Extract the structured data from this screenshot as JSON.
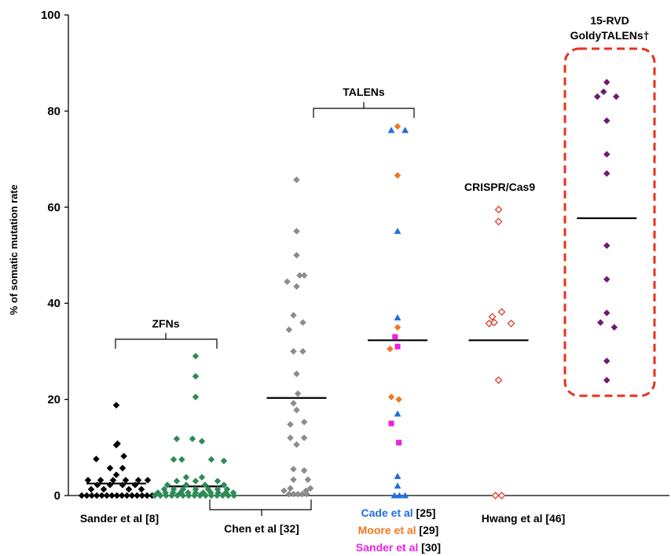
{
  "chart_data": {
    "type": "scatter",
    "ylabel": "% of somatic mutation rate",
    "ylim": [
      0,
      100
    ],
    "yticks": [
      0,
      20,
      40,
      60,
      80,
      100
    ],
    "grid": false,
    "colors": {
      "sander8": "#000000",
      "chen": "#2e8b57",
      "talen_gray": "#8c8c8c",
      "cade": "#1f6fe0",
      "moore": "#f07820",
      "sander30": "#f020e0",
      "hwang": "#e23a2a",
      "goldy": "#6e1b70",
      "highlight": "#e8321e"
    },
    "category_labels": {
      "sander8": "Sander et al [8]",
      "chen": "Chen et al [32]",
      "hwang": "Hwang et al [46]",
      "cade_name": "Cade et al",
      "cade_ref": " [25]",
      "moore_name": "Moore et al",
      "moore_ref": " [29]",
      "sander30_name": "Sander et al",
      "sander30_ref": " [30]"
    },
    "group_labels": {
      "zfns": "ZFNs",
      "talens": "TALENs",
      "crispr": "CRISPR/Cas9",
      "goldy_line1": "15-RVD",
      "goldy_line2": "GoldyTALENs†"
    },
    "series": [
      {
        "key": "sander8",
        "marker": "diamond",
        "fill": "solid",
        "color": "#000000",
        "x": 2.5,
        "median": 2.5,
        "points": [
          [
            -0.55,
            0
          ],
          [
            -0.47,
            0
          ],
          [
            -0.39,
            0
          ],
          [
            -0.31,
            0
          ],
          [
            -0.23,
            0
          ],
          [
            -0.15,
            0
          ],
          [
            -0.07,
            0
          ],
          [
            0.01,
            0
          ],
          [
            0.09,
            0
          ],
          [
            0.17,
            0
          ],
          [
            0.25,
            0
          ],
          [
            0.33,
            0
          ],
          [
            0.41,
            0
          ],
          [
            0.49,
            0
          ],
          [
            0.57,
            0
          ],
          [
            -0.4,
            1.3
          ],
          [
            -0.2,
            1.3
          ],
          [
            0.2,
            1.3
          ],
          [
            0.4,
            1.3
          ],
          [
            -0.3,
            2.2
          ],
          [
            -0.1,
            2.2
          ],
          [
            0.1,
            2.2
          ],
          [
            0.3,
            2.2
          ],
          [
            -0.45,
            3.2
          ],
          [
            -0.25,
            3.2
          ],
          [
            -0.05,
            3.2
          ],
          [
            0.15,
            3.2
          ],
          [
            0.35,
            3.2
          ],
          [
            0.5,
            3.2
          ],
          [
            0.0,
            4.3
          ],
          [
            -0.1,
            5.7
          ],
          [
            0.1,
            5.7
          ],
          [
            -0.32,
            7.6
          ],
          [
            0.12,
            8.2
          ],
          [
            0.0,
            10.5
          ],
          [
            0.02,
            10.8
          ],
          [
            0.0,
            18.8
          ]
        ]
      },
      {
        "key": "chen",
        "marker": "diamond",
        "fill": "solid",
        "color": "#2e8b57",
        "x": 3.05,
        "median": 1.9,
        "points": [
          [
            -0.65,
            0
          ],
          [
            -0.56,
            0
          ],
          [
            -0.47,
            0
          ],
          [
            -0.38,
            0
          ],
          [
            -0.29,
            0
          ],
          [
            -0.2,
            0
          ],
          [
            -0.11,
            0
          ],
          [
            -0.02,
            0
          ],
          [
            0.07,
            0
          ],
          [
            0.16,
            0
          ],
          [
            0.25,
            0
          ],
          [
            0.34,
            0
          ],
          [
            0.43,
            0
          ],
          [
            0.52,
            0
          ],
          [
            0.61,
            0
          ],
          [
            -0.6,
            0.6
          ],
          [
            -0.48,
            0.6
          ],
          [
            -0.36,
            0.6
          ],
          [
            -0.24,
            0.6
          ],
          [
            -0.12,
            0.6
          ],
          [
            0.0,
            0.6
          ],
          [
            0.12,
            0.6
          ],
          [
            0.24,
            0.6
          ],
          [
            0.36,
            0.6
          ],
          [
            0.48,
            0.6
          ],
          [
            0.6,
            0.6
          ],
          [
            -0.5,
            1.3
          ],
          [
            -0.35,
            1.3
          ],
          [
            -0.2,
            1.3
          ],
          [
            0.0,
            1.3
          ],
          [
            0.2,
            1.3
          ],
          [
            0.35,
            1.3
          ],
          [
            0.5,
            1.3
          ],
          [
            -0.45,
            2.2
          ],
          [
            -0.15,
            2.2
          ],
          [
            0.15,
            2.2
          ],
          [
            0.45,
            2.2
          ],
          [
            -0.3,
            3.0
          ],
          [
            0.0,
            3.0
          ],
          [
            0.35,
            3.0
          ],
          [
            -0.15,
            3.8
          ],
          [
            0.1,
            3.8
          ],
          [
            -0.35,
            7.5
          ],
          [
            -0.22,
            7.5
          ],
          [
            0.25,
            7.5
          ],
          [
            0.45,
            7.2
          ],
          [
            -0.3,
            11.8
          ],
          [
            -0.05,
            11.8
          ],
          [
            0.1,
            11.3
          ],
          [
            0.0,
            20.5
          ],
          [
            0.0,
            24.8
          ],
          [
            0.0,
            29.0
          ]
        ]
      },
      {
        "key": "talen_gray",
        "marker": "diamond",
        "fill": "solid",
        "color": "#8c8c8c",
        "x": 3.75,
        "median": 20.3,
        "points": [
          [
            -0.12,
            0.3
          ],
          [
            -0.05,
            0.3
          ],
          [
            0.02,
            0.3
          ],
          [
            0.09,
            0.3
          ],
          [
            0.16,
            0.3
          ],
          [
            -0.2,
            1.0
          ],
          [
            0.15,
            1.0
          ],
          [
            -0.1,
            1.5
          ],
          [
            0.22,
            1.5
          ],
          [
            -0.05,
            3.3
          ],
          [
            0.18,
            3.3
          ],
          [
            -0.05,
            5.5
          ],
          [
            0.12,
            5.2
          ],
          [
            0.0,
            10.6
          ],
          [
            -0.1,
            12.0
          ],
          [
            0.12,
            12.0
          ],
          [
            -0.1,
            14.8
          ],
          [
            0.12,
            15.3
          ],
          [
            0.0,
            17.8
          ],
          [
            -0.05,
            19.2
          ],
          [
            0.02,
            21.2
          ],
          [
            0.0,
            25.3
          ],
          [
            -0.05,
            30.0
          ],
          [
            0.1,
            30.0
          ],
          [
            -0.12,
            34.5
          ],
          [
            0.1,
            36.0
          ],
          [
            -0.05,
            37.5
          ],
          [
            0.0,
            43.5
          ],
          [
            -0.15,
            44.5
          ],
          [
            0.05,
            45.8
          ],
          [
            0.12,
            45.8
          ],
          [
            0.0,
            50.0
          ],
          [
            0.0,
            55.0
          ],
          [
            0.0,
            65.7
          ]
        ]
      },
      {
        "key": "cade",
        "marker": "triangle",
        "fill": "solid",
        "color": "#1f6fe0",
        "x": 4.45,
        "median": 32.3,
        "points": [
          [
            -0.05,
            0
          ],
          [
            0.03,
            0
          ],
          [
            0.12,
            0
          ],
          [
            0.0,
            2.0
          ],
          [
            0.0,
            4.0
          ],
          [
            0.0,
            17.0
          ],
          [
            0.0,
            37.0
          ],
          [
            0.0,
            55.0
          ],
          [
            -0.1,
            76.0
          ],
          [
            0.12,
            76.0
          ]
        ]
      },
      {
        "key": "moore",
        "marker": "diamond",
        "fill": "solid",
        "color": "#f07820",
        "x": 4.45,
        "median": null,
        "points": [
          [
            0.02,
            20.0
          ],
          [
            -0.1,
            20.5
          ],
          [
            -0.12,
            30.5
          ],
          [
            0.0,
            35.0
          ],
          [
            0.0,
            66.6
          ],
          [
            0.0,
            76.8
          ]
        ]
      },
      {
        "key": "sander30",
        "marker": "square",
        "fill": "solid",
        "color": "#f020e0",
        "x": 4.45,
        "median": null,
        "points": [
          [
            0.02,
            11.0
          ],
          [
            -0.1,
            15.0
          ],
          [
            0.0,
            31.0
          ],
          [
            -0.04,
            33.0
          ]
        ]
      },
      {
        "key": "hwang",
        "marker": "diamond",
        "fill": "hollow",
        "color": "#e23a2a",
        "x": 5.15,
        "median": 32.3,
        "points": [
          [
            -0.05,
            0
          ],
          [
            0.05,
            0
          ],
          [
            0.0,
            24.0
          ],
          [
            -0.15,
            35.8
          ],
          [
            -0.07,
            36.0
          ],
          [
            0.2,
            35.8
          ],
          [
            -0.1,
            37.2
          ],
          [
            0.05,
            38.2
          ],
          [
            0.0,
            57.0
          ],
          [
            0.0,
            59.5
          ]
        ]
      },
      {
        "key": "goldy",
        "marker": "diamond",
        "fill": "solid",
        "color": "#6e1b70",
        "x": 5.9,
        "median": 57.7,
        "points": [
          [
            0.0,
            24.0
          ],
          [
            0.0,
            28.0
          ],
          [
            0.12,
            35.0
          ],
          [
            -0.1,
            36.0
          ],
          [
            0.0,
            38.0
          ],
          [
            0.0,
            45.0
          ],
          [
            0.0,
            52.0
          ],
          [
            0.0,
            67.0
          ],
          [
            0.0,
            71.0
          ],
          [
            0.0,
            78.0
          ],
          [
            -0.15,
            83.0
          ],
          [
            0.15,
            83.0
          ],
          [
            -0.05,
            84.0
          ],
          [
            0.0,
            86.0
          ]
        ]
      }
    ]
  }
}
